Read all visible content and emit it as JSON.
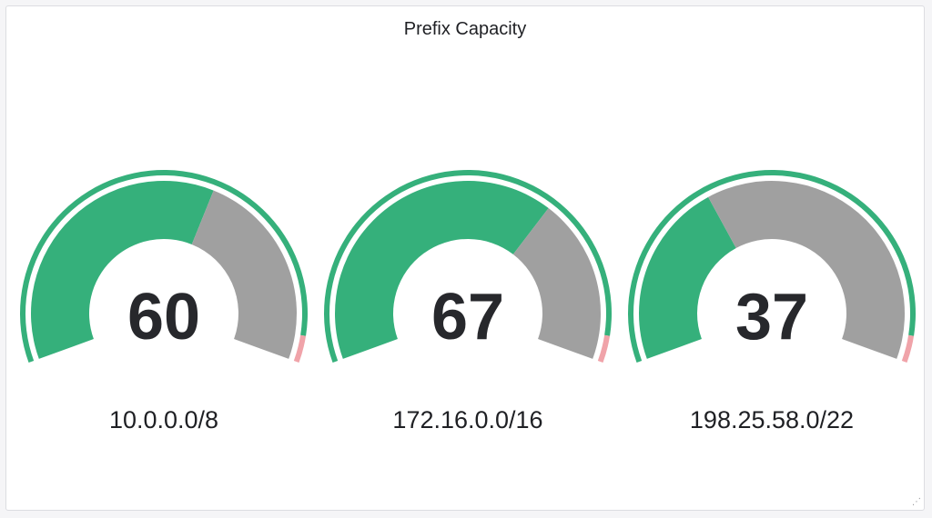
{
  "panel": {
    "title": "Prefix Capacity"
  },
  "colors": {
    "used": "#35b07b",
    "free": "#a0a0a0",
    "threshold_ok": "#35b07b",
    "threshold_critical": "#f0a3a9",
    "value_text": "#27282c",
    "label_text": "#1f2024"
  },
  "gauges": [
    {
      "value": 60,
      "value_label": "60",
      "prefix": "10.0.0.0/8"
    },
    {
      "value": 67,
      "value_label": "67",
      "prefix": "172.16.0.0/16"
    },
    {
      "value": 37,
      "value_label": "37",
      "prefix": "198.25.58.0/22"
    }
  ],
  "gauge_scale": {
    "min": 0,
    "max": 100,
    "critical_threshold": 95
  },
  "icons": {
    "resize": "resize-handle-icon"
  }
}
